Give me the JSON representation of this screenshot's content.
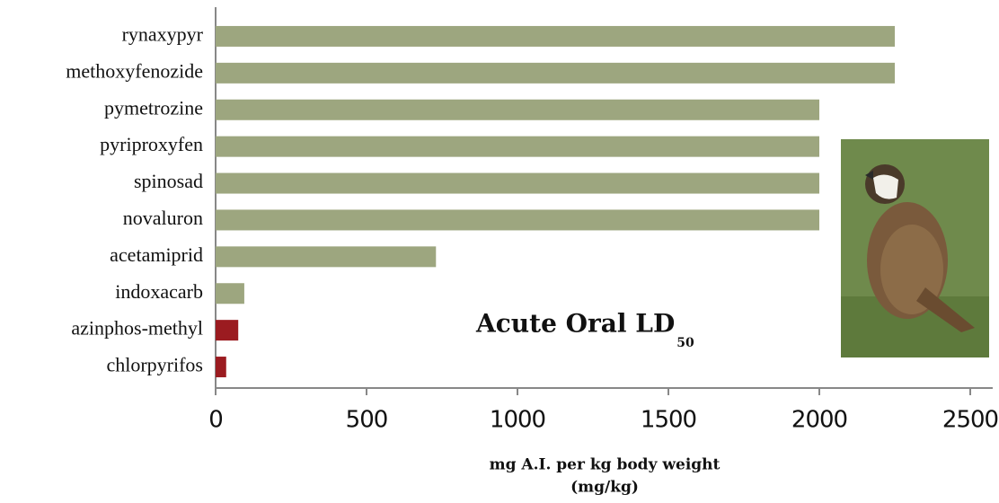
{
  "chart_data": {
    "type": "barh",
    "title": "Acute Oral LD",
    "title_subscript": "50",
    "xlabel": [
      "mg A.I. per kg body weight",
      "(mg/kg)"
    ],
    "categories": [
      "rynaxypyr",
      "methoxyfenozide",
      "pymetrozine",
      "pyriproxyfen",
      "spinosad",
      "novaluron",
      "acetamiprid",
      "indoxacarb",
      "azinphos-methyl",
      "chlorpyrifos"
    ],
    "values": [
      2250,
      2250,
      2000,
      2000,
      2000,
      2000,
      730,
      95,
      75,
      35
    ],
    "colors": [
      "#9da67f",
      "#9da67f",
      "#9da67f",
      "#9da67f",
      "#9da67f",
      "#9da67f",
      "#9da67f",
      "#9da67f",
      "#9b1b20",
      "#9b1b20"
    ],
    "xlim": [
      0,
      2500
    ],
    "xticks": [
      0,
      500,
      1000,
      1500,
      2000,
      2500
    ]
  }
}
